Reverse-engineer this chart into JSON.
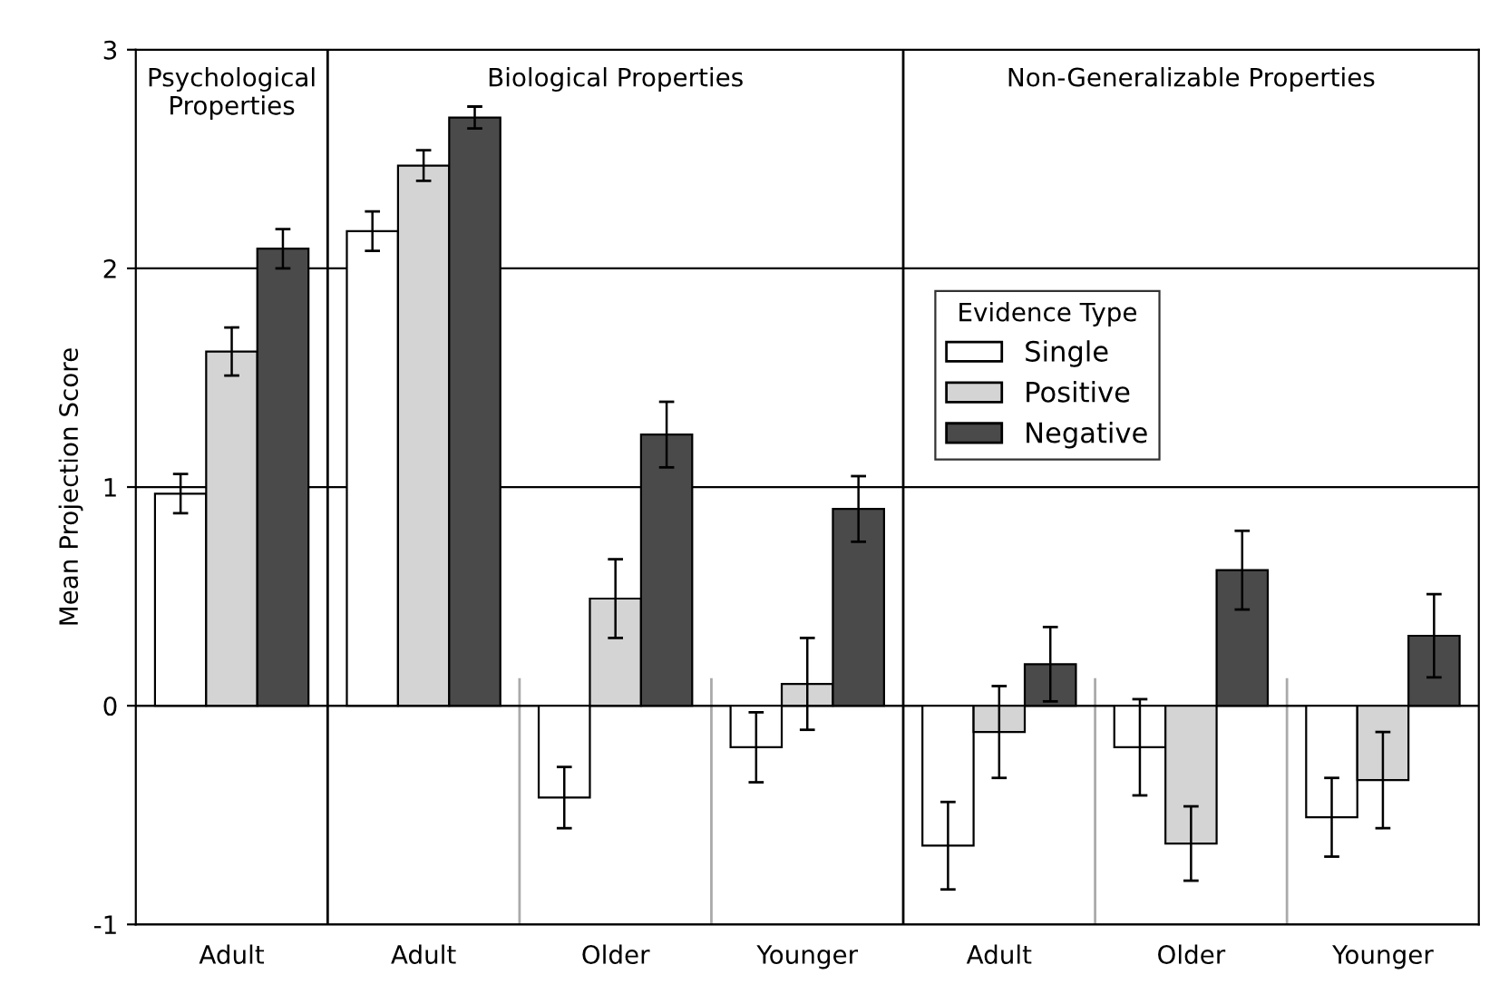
{
  "chart_data": {
    "type": "bar",
    "ylabel": "Mean Projection Score",
    "categories": [
      "Adult",
      "Adult",
      "Older",
      "Younger",
      "Adult",
      "Older",
      "Younger"
    ],
    "series": [
      {
        "name": "Single",
        "color": "#ffffff",
        "values": [
          0.97,
          2.17,
          -0.42,
          -0.19,
          -0.64,
          -0.19,
          -0.51
        ],
        "errors": [
          0.09,
          0.09,
          0.14,
          0.16,
          0.2,
          0.22,
          0.18
        ]
      },
      {
        "name": "Positive",
        "color": "#d4d4d4",
        "values": [
          1.62,
          2.47,
          0.49,
          0.1,
          -0.12,
          -0.63,
          -0.34
        ],
        "errors": [
          0.11,
          0.07,
          0.18,
          0.21,
          0.21,
          0.17,
          0.22
        ]
      },
      {
        "name": "Negative",
        "color": "#4a4a4a",
        "values": [
          2.09,
          2.69,
          1.24,
          0.9,
          0.19,
          0.62,
          0.32
        ],
        "errors": [
          0.09,
          0.05,
          0.15,
          0.15,
          0.17,
          0.18,
          0.19
        ]
      }
    ],
    "legend_title": "Evidence Type",
    "legend": "right",
    "ylim": [
      -1,
      3
    ],
    "yticks": [
      -1,
      0,
      1,
      2,
      3
    ],
    "grid": "y",
    "annotations": [
      "Psychological\nProperties",
      "Biological Properties",
      "Non-Generalizable Properties"
    ]
  }
}
